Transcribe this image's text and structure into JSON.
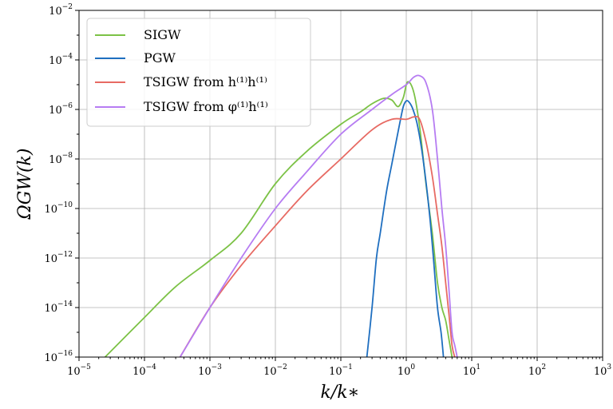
{
  "chart_data": {
    "type": "line",
    "title": "",
    "xlabel": "k/k_*",
    "ylabel": "Ω_GW(k)",
    "xscale": "log",
    "yscale": "log",
    "xlim": [
      1e-05,
      1000
    ],
    "ylim": [
      1e-16,
      0.01
    ],
    "grid": true,
    "legend_position": "top-left",
    "x_tick_exponents": [
      "-5",
      "-4",
      "-3",
      "-2",
      "-1",
      "0",
      "1",
      "2",
      "3"
    ],
    "y_tick_exponents": [
      "-16",
      "-14",
      "-12",
      "-10",
      "-8",
      "-6",
      "-4",
      "-2"
    ],
    "tick_base": "10",
    "series": [
      {
        "name": "SIGW",
        "color": "#7cc246",
        "x": [
          2.5e-05,
          0.0001,
          0.0003,
          0.001,
          0.003,
          0.01,
          0.03,
          0.1,
          0.2,
          0.3,
          0.45,
          0.6,
          0.75,
          0.9,
          1.05,
          1.3,
          1.6,
          2.0,
          2.5,
          3.0,
          3.5,
          4.0,
          4.5,
          5.0
        ],
        "y": [
          1e-16,
          4e-15,
          7e-14,
          8e-13,
          1e-11,
          1e-09,
          2e-08,
          2.5e-07,
          8e-07,
          1.7e-06,
          2.8e-06,
          2.4e-06,
          1.3e-06,
          3e-06,
          1.3e-05,
          5e-06,
          2e-07,
          1e-09,
          1e-11,
          1e-13,
          1e-14,
          3e-15,
          5e-16,
          1e-16
        ]
      },
      {
        "name": "PGW",
        "color": "#1f6fc0",
        "x": [
          0.25,
          0.3,
          0.35,
          0.4,
          0.5,
          0.6,
          0.7,
          0.8,
          0.9,
          1.0,
          1.1,
          1.25,
          1.45,
          1.7,
          2.0,
          2.3,
          2.6,
          3.0,
          3.4,
          3.7
        ],
        "y": [
          1e-16,
          1e-14,
          1e-12,
          1e-11,
          5e-10,
          6e-09,
          5e-08,
          3e-07,
          1.3e-06,
          2.2e-06,
          2e-06,
          1.1e-06,
          3e-07,
          3e-08,
          1.2e-09,
          4e-11,
          1e-12,
          1e-14,
          1e-15,
          1e-16
        ]
      },
      {
        "name": "TSIGW from h⁽¹⁾h⁽¹⁾",
        "color": "#e76a63",
        "x": [
          0.00035,
          0.001,
          0.003,
          0.01,
          0.03,
          0.1,
          0.3,
          0.6,
          1.0,
          1.3,
          1.6,
          2.0,
          2.5,
          3.0,
          3.5,
          4.0,
          4.5,
          5.0,
          5.5
        ],
        "y": [
          1e-16,
          1e-14,
          5e-13,
          2e-11,
          5e-10,
          1e-08,
          1.5e-07,
          4e-07,
          4e-07,
          5e-07,
          4e-07,
          5e-08,
          2e-09,
          6e-11,
          3e-12,
          1e-13,
          5e-15,
          3e-16,
          1e-16
        ]
      },
      {
        "name": "TSIGW from φ⁽¹⁾h⁽¹⁾",
        "color": "#b67cf2",
        "x": [
          0.00035,
          0.001,
          0.003,
          0.01,
          0.03,
          0.1,
          0.3,
          0.6,
          1.0,
          1.3,
          1.6,
          2.0,
          2.5,
          3.0,
          3.5,
          4.0,
          4.5,
          5.0,
          5.5,
          6.0
        ],
        "y": [
          1e-16,
          1e-14,
          1e-12,
          1e-10,
          3e-09,
          1e-07,
          1e-06,
          4e-06,
          1e-05,
          2e-05,
          2.3e-05,
          1.2e-05,
          1e-06,
          1e-08,
          1e-10,
          3e-12,
          5e-14,
          1e-15,
          3e-16,
          1e-16
        ]
      }
    ]
  }
}
